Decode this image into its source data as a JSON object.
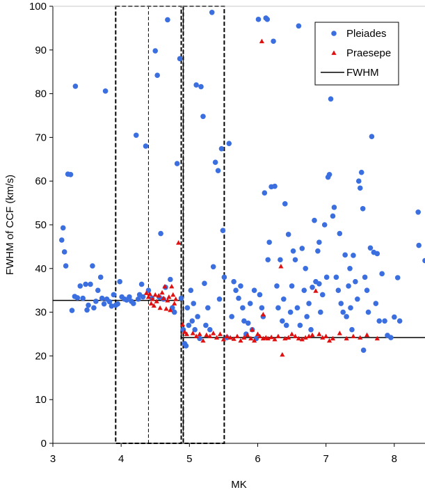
{
  "chart_data": {
    "type": "scatter",
    "xlabel": "MK",
    "ylabel": "FWHM of CCF (km/s)",
    "xlim": [
      3,
      8.45
    ],
    "ylim": [
      0,
      100
    ],
    "xticks": [
      3,
      4,
      5,
      6,
      7,
      8
    ],
    "yticks": [
      0,
      10,
      20,
      30,
      40,
      50,
      60,
      70,
      80,
      90,
      100
    ],
    "grid": false,
    "legend_position": "top-right",
    "colors": {
      "pleiades": "#3b6fe0",
      "praesepe": "#e01010",
      "fwhm": "#000000"
    },
    "series": [
      {
        "name": "Pleiades",
        "marker": "circle",
        "points": [
          [
            3.13,
            46.5
          ],
          [
            3.15,
            49.3
          ],
          [
            3.17,
            43.8
          ],
          [
            3.19,
            40.6
          ],
          [
            3.22,
            61.6
          ],
          [
            3.26,
            61.5
          ],
          [
            3.33,
            81.7
          ],
          [
            3.28,
            30.4
          ],
          [
            3.32,
            33.6
          ],
          [
            3.36,
            33.3
          ],
          [
            3.4,
            36.0
          ],
          [
            3.44,
            33.2
          ],
          [
            3.48,
            36.4
          ],
          [
            3.5,
            30.5
          ],
          [
            3.52,
            31.6
          ],
          [
            3.55,
            36.4
          ],
          [
            3.58,
            40.6
          ],
          [
            3.6,
            31.0
          ],
          [
            3.63,
            32.5
          ],
          [
            3.66,
            35.0
          ],
          [
            3.7,
            38.0
          ],
          [
            3.72,
            33.2
          ],
          [
            3.75,
            31.9
          ],
          [
            3.77,
            80.6
          ],
          [
            3.79,
            33.0
          ],
          [
            3.83,
            32.4
          ],
          [
            3.86,
            31.4
          ],
          [
            3.89,
            34.0
          ],
          [
            3.92,
            31.6
          ],
          [
            3.95,
            31.9
          ],
          [
            3.98,
            37.0
          ],
          [
            4.01,
            33.5
          ],
          [
            4.05,
            33.0
          ],
          [
            4.08,
            32.8
          ],
          [
            4.12,
            33.5
          ],
          [
            4.15,
            32.5
          ],
          [
            4.18,
            32.0
          ],
          [
            4.22,
            70.5
          ],
          [
            4.25,
            33.0
          ],
          [
            4.27,
            34.0
          ],
          [
            4.3,
            36.4
          ],
          [
            4.32,
            33.5
          ],
          [
            4.36,
            68.0
          ],
          [
            4.4,
            35.0
          ],
          [
            4.45,
            33.2
          ],
          [
            4.5,
            89.8
          ],
          [
            4.53,
            84.2
          ],
          [
            4.56,
            33.4
          ],
          [
            4.58,
            48.0
          ],
          [
            4.62,
            33.0
          ],
          [
            4.65,
            35.7
          ],
          [
            4.68,
            96.9
          ],
          [
            4.72,
            37.5
          ],
          [
            4.75,
            31.0
          ],
          [
            4.78,
            30.0
          ],
          [
            4.82,
            64.0
          ],
          [
            4.86,
            88.0
          ],
          [
            4.88,
            33.2
          ],
          [
            4.91,
            26.0
          ],
          [
            4.93,
            22.8
          ],
          [
            4.95,
            22.3
          ],
          [
            4.97,
            31.0
          ],
          [
            4.99,
            27.0
          ],
          [
            5.02,
            35.0
          ],
          [
            5.04,
            28.0
          ],
          [
            5.06,
            32.0
          ],
          [
            5.08,
            26.0
          ],
          [
            5.1,
            82.0
          ],
          [
            5.12,
            29.0
          ],
          [
            5.15,
            24.0
          ],
          [
            5.17,
            81.6
          ],
          [
            5.2,
            74.8
          ],
          [
            5.22,
            36.6
          ],
          [
            5.24,
            27.0
          ],
          [
            5.27,
            31.0
          ],
          [
            5.3,
            26.0
          ],
          [
            5.33,
            98.6
          ],
          [
            5.35,
            40.4
          ],
          [
            5.38,
            64.3
          ],
          [
            5.42,
            62.4
          ],
          [
            5.44,
            33.0
          ],
          [
            5.47,
            67.4
          ],
          [
            5.49,
            48.7
          ],
          [
            5.51,
            38.0
          ],
          [
            5.55,
            24.2
          ],
          [
            5.58,
            68.6
          ],
          [
            5.62,
            29.0
          ],
          [
            5.65,
            37.0
          ],
          [
            5.68,
            35.0
          ],
          [
            5.72,
            33.2
          ],
          [
            5.75,
            36.0
          ],
          [
            5.78,
            31.0
          ],
          [
            5.8,
            28.0
          ],
          [
            5.83,
            25.0
          ],
          [
            5.86,
            27.5
          ],
          [
            5.89,
            32.0
          ],
          [
            5.92,
            26.0
          ],
          [
            5.95,
            35.0
          ],
          [
            5.98,
            24.0
          ],
          [
            6.01,
            97.0
          ],
          [
            6.03,
            34.0
          ],
          [
            6.06,
            31.0
          ],
          [
            6.08,
            29.0
          ],
          [
            6.1,
            57.3
          ],
          [
            6.12,
            97.3
          ],
          [
            6.14,
            97.0
          ],
          [
            6.17,
            46.0
          ],
          [
            6.2,
            58.7
          ],
          [
            6.23,
            92.0
          ],
          [
            6.25,
            58.8
          ],
          [
            6.28,
            36.0
          ],
          [
            6.3,
            31.0
          ],
          [
            6.33,
            42.0
          ],
          [
            6.36,
            28.0
          ],
          [
            6.38,
            33.0
          ],
          [
            6.4,
            54.8
          ],
          [
            6.42,
            27.0
          ],
          [
            6.45,
            47.8
          ],
          [
            6.48,
            30.0
          ],
          [
            6.5,
            36.0
          ],
          [
            6.52,
            44.0
          ],
          [
            6.55,
            42.0
          ],
          [
            6.58,
            31.0
          ],
          [
            6.6,
            95.5
          ],
          [
            6.62,
            27.0
          ],
          [
            6.65,
            44.6
          ],
          [
            6.68,
            35.0
          ],
          [
            6.7,
            40.0
          ],
          [
            6.72,
            29.0
          ],
          [
            6.75,
            32.0
          ],
          [
            6.78,
            26.0
          ],
          [
            6.8,
            35.7
          ],
          [
            6.83,
            51.0
          ],
          [
            6.85,
            37.0
          ],
          [
            6.88,
            44.0
          ],
          [
            6.9,
            46.0
          ],
          [
            6.92,
            30.0
          ],
          [
            6.95,
            34.0
          ],
          [
            6.98,
            50.0
          ],
          [
            7.01,
            38.0
          ],
          [
            7.03,
            60.9
          ],
          [
            7.05,
            61.5
          ],
          [
            7.07,
            78.8
          ],
          [
            7.1,
            52.0
          ],
          [
            7.12,
            54.0
          ],
          [
            7.15,
            38.0
          ],
          [
            7.18,
            35.0
          ],
          [
            7.2,
            48.0
          ],
          [
            7.22,
            32.0
          ],
          [
            7.25,
            30.0
          ],
          [
            7.28,
            43.1
          ],
          [
            7.3,
            29.0
          ],
          [
            7.33,
            36.0
          ],
          [
            7.36,
            31.0
          ],
          [
            7.38,
            26.0
          ],
          [
            7.4,
            43.0
          ],
          [
            7.43,
            37.0
          ],
          [
            7.46,
            33.0
          ],
          [
            7.48,
            60.0
          ],
          [
            7.5,
            58.4
          ],
          [
            7.52,
            62.0
          ],
          [
            7.54,
            53.7
          ],
          [
            7.57,
            38.0
          ],
          [
            7.6,
            35.0
          ],
          [
            7.62,
            30.0
          ],
          [
            7.65,
            44.7
          ],
          [
            7.67,
            70.2
          ],
          [
            7.7,
            43.7
          ],
          [
            7.73,
            32.0
          ],
          [
            7.75,
            43.4
          ],
          [
            7.78,
            28.0
          ],
          [
            7.82,
            38.8
          ],
          [
            7.86,
            28.0
          ],
          [
            7.9,
            24.7
          ],
          [
            7.95,
            24.2
          ],
          [
            8.0,
            28.9
          ],
          [
            8.05,
            37.9
          ],
          [
            8.08,
            28.0
          ],
          [
            8.35,
            52.9
          ],
          [
            8.36,
            45.3
          ],
          [
            8.45,
            41.8
          ],
          [
            7.55,
            21.3
          ],
          [
            6.15,
            42.0
          ],
          [
            6.9,
            36.5
          ],
          [
            7.35,
            40.0
          ]
        ]
      },
      {
        "name": "Praesepe",
        "marker": "triangle",
        "points": [
          [
            4.37,
            34.4
          ],
          [
            4.4,
            33.5
          ],
          [
            4.42,
            34.2
          ],
          [
            4.44,
            32.0
          ],
          [
            4.46,
            33.0
          ],
          [
            4.48,
            31.5
          ],
          [
            4.5,
            34.0
          ],
          [
            4.52,
            32.5
          ],
          [
            4.55,
            33.8
          ],
          [
            4.57,
            31.0
          ],
          [
            4.6,
            34.5
          ],
          [
            4.62,
            33.2
          ],
          [
            4.64,
            35.9
          ],
          [
            4.66,
            30.8
          ],
          [
            4.68,
            32.7
          ],
          [
            4.7,
            33.5
          ],
          [
            4.72,
            30.5
          ],
          [
            4.74,
            35.9
          ],
          [
            4.76,
            34.0
          ],
          [
            4.78,
            32.0
          ],
          [
            4.8,
            33.0
          ],
          [
            4.84,
            45.9
          ],
          [
            4.9,
            27.2
          ],
          [
            4.93,
            25.5
          ],
          [
            4.96,
            25.0
          ],
          [
            5.05,
            25.2
          ],
          [
            5.1,
            24.5
          ],
          [
            5.15,
            25.0
          ],
          [
            5.2,
            23.5
          ],
          [
            5.25,
            24.8
          ],
          [
            5.3,
            24.5
          ],
          [
            5.35,
            25.2
          ],
          [
            5.4,
            24.2
          ],
          [
            5.45,
            25.0
          ],
          [
            5.5,
            23.8
          ],
          [
            5.55,
            24.5
          ],
          [
            5.6,
            24.2
          ],
          [
            5.65,
            23.9
          ],
          [
            5.7,
            24.5
          ],
          [
            5.75,
            23.5
          ],
          [
            5.8,
            24.2
          ],
          [
            5.85,
            24.8
          ],
          [
            5.9,
            24.0
          ],
          [
            5.95,
            23.5
          ],
          [
            6.0,
            25.0
          ],
          [
            6.03,
            24.5
          ],
          [
            6.06,
            92.0
          ],
          [
            6.08,
            24.0
          ],
          [
            6.12,
            24.2
          ],
          [
            6.15,
            24.0
          ],
          [
            6.2,
            24.3
          ],
          [
            6.25,
            23.8
          ],
          [
            6.3,
            24.5
          ],
          [
            6.34,
            40.5
          ],
          [
            6.36,
            20.3
          ],
          [
            6.4,
            24.0
          ],
          [
            6.45,
            24.2
          ],
          [
            6.5,
            25.0
          ],
          [
            6.55,
            24.5
          ],
          [
            6.6,
            24.0
          ],
          [
            6.65,
            23.8
          ],
          [
            6.7,
            24.2
          ],
          [
            6.75,
            24.5
          ],
          [
            6.8,
            24.8
          ],
          [
            6.85,
            34.9
          ],
          [
            6.9,
            25.0
          ],
          [
            6.95,
            24.2
          ],
          [
            7.0,
            24.5
          ],
          [
            7.05,
            23.5
          ],
          [
            7.1,
            24.0
          ],
          [
            7.2,
            25.2
          ],
          [
            7.3,
            24.0
          ],
          [
            7.4,
            24.5
          ],
          [
            7.5,
            24.2
          ],
          [
            7.6,
            24.8
          ],
          [
            7.75,
            24.0
          ],
          [
            6.08,
            29.5
          ],
          [
            5.92,
            26.0
          ]
        ]
      },
      {
        "name": "FWHM",
        "marker": "line",
        "points": [
          [
            3.0,
            32.7
          ],
          [
            4.88,
            32.7
          ],
          [
            4.88,
            24.2
          ],
          [
            8.45,
            24.2
          ]
        ]
      }
    ],
    "regions": [
      {
        "style": "thick-dashed",
        "x": [
          3.92,
          4.88
        ],
        "y": [
          0,
          100
        ]
      },
      {
        "style": "thin-dashed",
        "x": [
          4.4,
          4.91
        ],
        "y": [
          0,
          100
        ]
      },
      {
        "style": "thick-dashed",
        "x": [
          4.91,
          5.51
        ],
        "y": [
          0,
          100
        ]
      }
    ]
  }
}
